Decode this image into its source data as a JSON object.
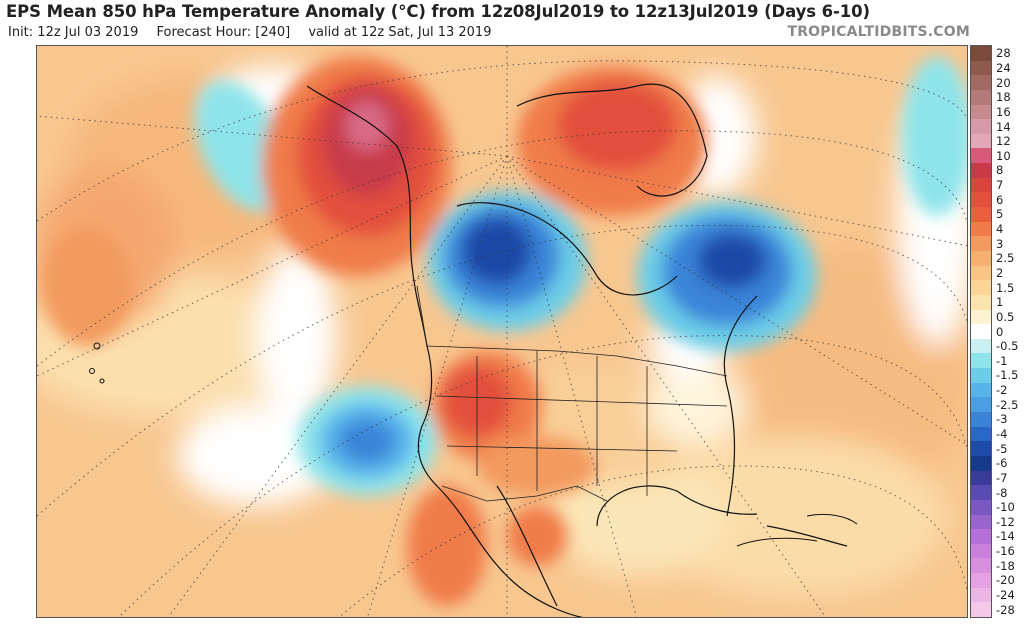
{
  "header": {
    "title": "EPS Mean 850 hPa Temperature Anomaly (°C) from 12z08Jul2019 to 12z13Jul2019 (Days 6-10)",
    "init": "Init: 12z Jul 03 2019",
    "forecast_hour": "Forecast Hour: [240]",
    "valid": "valid at 12z Sat, Jul 13 2019",
    "brand": "TROPICALTIDBITS.COM"
  },
  "legend": {
    "labels": [
      "28",
      "24",
      "20",
      "18",
      "16",
      "14",
      "12",
      "10",
      "8",
      "7",
      "6",
      "5",
      "4",
      "3",
      "2.5",
      "2",
      "1.5",
      "1",
      "0.5",
      "0",
      "-0.5",
      "-1",
      "-1.5",
      "-2",
      "-2.5",
      "-3",
      "-4",
      "-5",
      "-6",
      "-7",
      "-8",
      "-10",
      "-12",
      "-14",
      "-16",
      "-18",
      "-20",
      "-24",
      "-28"
    ],
    "colors": [
      "#7a4a3a",
      "#8e5a4e",
      "#a06a62",
      "#b27a78",
      "#c48a8e",
      "#d69aa6",
      "#e3a8b8",
      "#d85a7a",
      "#c83a48",
      "#d8453a",
      "#e2503c",
      "#ea5f3e",
      "#f07c4a",
      "#f39a5e",
      "#f6b070",
      "#f8c582",
      "#fad596",
      "#fbe3ae",
      "#fdf3d4",
      "#ffffff",
      "#c8f0f0",
      "#8ee4ea",
      "#6ccde8",
      "#56b4ea",
      "#4a9ee4",
      "#3a84d8",
      "#2a66c4",
      "#1e4aa8",
      "#173a8c",
      "#3a3a9a",
      "#5a4ab4",
      "#7a58c4",
      "#9a64d0",
      "#b470d8",
      "#c880dc",
      "#d890de",
      "#e4a2e2",
      "#ecb6e4",
      "#f4c8e8"
    ]
  },
  "map": {
    "region": "North America",
    "anomalies": [
      {
        "area": "Alaska / Yukon",
        "value_c": 6,
        "kind": "warm"
      },
      {
        "area": "Hudson Bay / central Canada",
        "value_c": -5,
        "kind": "cold"
      },
      {
        "area": "Labrador / Quebec",
        "value_c": -4,
        "kind": "cold"
      },
      {
        "area": "Canadian Arctic / Greenland west",
        "value_c": 4,
        "kind": "warm"
      },
      {
        "area": "US Intermountain West / Rockies",
        "value_c": 4,
        "kind": "warm"
      },
      {
        "area": "Pacific off California",
        "value_c": -3,
        "kind": "cold"
      },
      {
        "area": "Mexico",
        "value_c": 3,
        "kind": "warm"
      }
    ]
  }
}
